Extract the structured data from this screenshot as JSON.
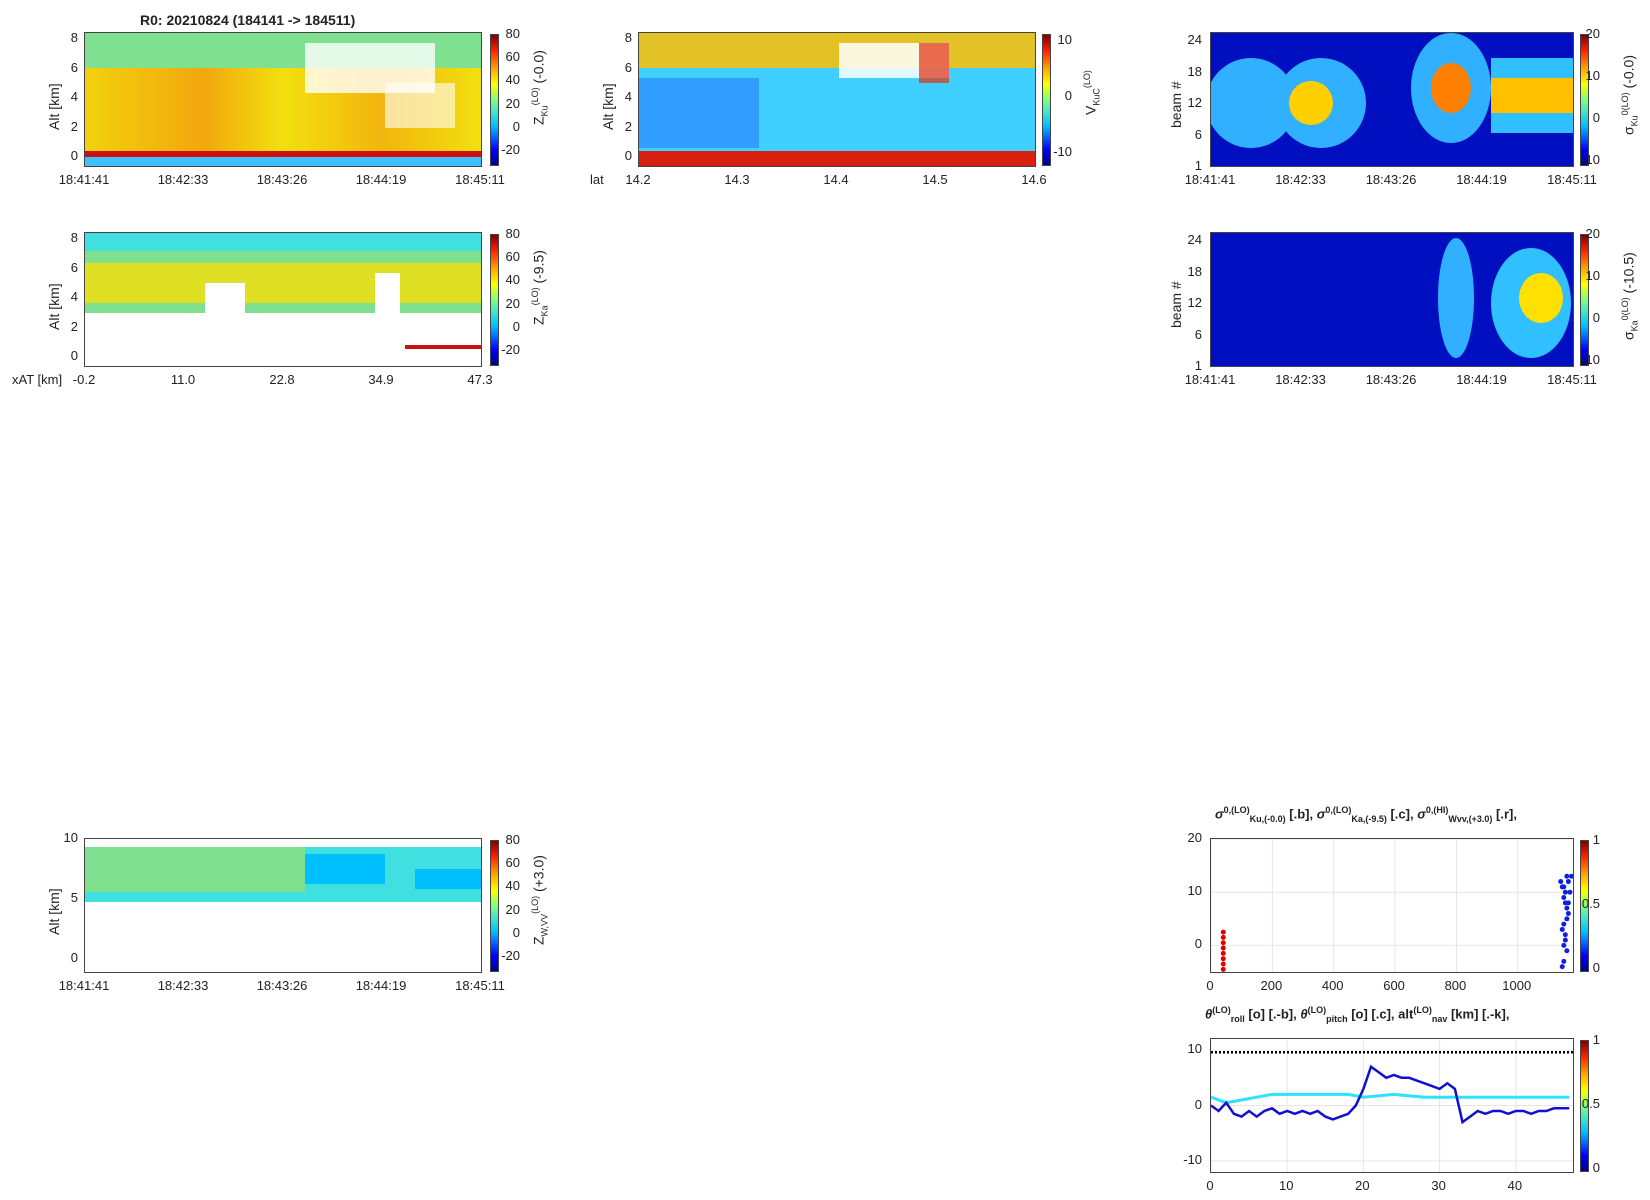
{
  "title": "R0:  20210824 (184141 -> 184511)",
  "time_ticks": [
    "18:41:41",
    "18:42:33",
    "18:43:26",
    "18:44:19",
    "18:45:11"
  ],
  "xat_ticks": [
    "-0.2",
    "11.0",
    "22.8",
    "34.9",
    "47.3"
  ],
  "xat_label": "x",
  "xat_sub": "AT",
  "xat_unit": "[km]",
  "lat_ticks": [
    "14.2",
    "14.3",
    "14.4",
    "14.5",
    "14.6"
  ],
  "lat_label": "lat",
  "alt_label": "Alt [km]",
  "beam_label": "beam #",
  "alt8_ticks": [
    "8",
    "6",
    "4",
    "2",
    "0"
  ],
  "alt10_ticks": [
    "10",
    "5",
    "0"
  ],
  "beam_ticks": [
    "24",
    "18",
    "12",
    "6",
    "1"
  ],
  "cbar_z_ticks": [
    "80",
    "60",
    "40",
    "20",
    "0",
    "-20"
  ],
  "cbar_v_ticks": [
    "10",
    "0",
    "-10"
  ],
  "cbar_s_ticks": [
    "20",
    "10",
    "0",
    "-10"
  ],
  "cbar_01_ticks": [
    "1",
    "0.5",
    "0"
  ],
  "labels": {
    "zku": "Z",
    "zku_sub": "Ku",
    "zku_sup": "(LO)",
    "zku_off": " (-0.0)",
    "zka": "Z",
    "zka_sub": "Ka",
    "zka_sup": "(LO)",
    "zka_off": " (-9.5)",
    "zw": "Z",
    "zw_sub": "W,VV",
    "zw_sup": "(LO)",
    "zw_off": " (+3.0)",
    "vku": "V",
    "vku_sub": "KuC",
    "vku_sup": "(LO)",
    "sku": "σ",
    "sku_sub": "Ku",
    "sku_sup": "0(LO)",
    "sku_off": " (-0.0)",
    "ska": "σ",
    "ska_sub": "Ka",
    "ska_sup": "0(LO)",
    "ska_off": " (-10.5)"
  },
  "sigma_title": {
    "a": "σ",
    "a_sup": "0,(LO)",
    "a_sub": "Ku,(-0.0)",
    "a_tail": " [.b], ",
    "b": "σ",
    "b_sup": "0,(LO)",
    "b_sub": "Ka,(-9.5)",
    "b_tail": " [.c], ",
    "c": "σ",
    "c_sup": "0,(HI)",
    "c_sub": "Wvv,(+3.0)",
    "c_tail": " [.r],"
  },
  "nav_title": {
    "a": "θ",
    "a_sup": "(LO)",
    "a_sub": "roll",
    "a_tail": " [o] [.-b], ",
    "b": "θ",
    "b_sup": "(LO)",
    "b_sub": "pitch",
    "b_tail": " [o] [.c], ",
    "c": "alt",
    "c_sup": "(LO)",
    "c_sub": "nav",
    "c_tail": " [km] [.-k],"
  },
  "chart_data": [
    {
      "type": "scatter",
      "name": "sigma0",
      "x_ticks": [
        "0",
        "200",
        "400",
        "600",
        "800",
        "1000"
      ],
      "y_ticks": [
        "20",
        "10",
        "0"
      ],
      "xlim": [
        0,
        1180
      ],
      "ylim": [
        -5,
        20
      ],
      "red_points": [
        [
          40,
          2.5
        ],
        [
          40,
          1.5
        ],
        [
          40,
          0.5
        ],
        [
          40,
          -0.5
        ],
        [
          40,
          -1.5
        ],
        [
          40,
          -2.5
        ],
        [
          40,
          -3.5
        ],
        [
          40,
          -4.5
        ]
      ],
      "blue_points": [
        [
          1140,
          12
        ],
        [
          1145,
          11
        ],
        [
          1150,
          9
        ],
        [
          1155,
          8
        ],
        [
          1160,
          7
        ],
        [
          1165,
          6
        ],
        [
          1150,
          4
        ],
        [
          1145,
          3
        ],
        [
          1155,
          1
        ],
        [
          1160,
          -1
        ],
        [
          1150,
          -3
        ],
        [
          1145,
          -4
        ],
        [
          1170,
          10
        ],
        [
          1165,
          12
        ],
        [
          1160,
          13
        ],
        [
          1175,
          13
        ],
        [
          1155,
          10
        ],
        [
          1150,
          11
        ],
        [
          1165,
          8
        ],
        [
          1160,
          5
        ],
        [
          1155,
          2
        ],
        [
          1150,
          0
        ]
      ]
    },
    {
      "type": "line",
      "name": "nav",
      "x_ticks": [
        "0",
        "10",
        "20",
        "30",
        "40"
      ],
      "y_ticks": [
        "10",
        "0",
        "-10"
      ],
      "xlim": [
        0,
        47.5
      ],
      "ylim": [
        -12,
        12
      ],
      "roll": [
        [
          0,
          0
        ],
        [
          1,
          -1
        ],
        [
          2,
          0.5
        ],
        [
          3,
          -1.5
        ],
        [
          4,
          -2
        ],
        [
          5,
          -1
        ],
        [
          6,
          -2
        ],
        [
          7,
          -1
        ],
        [
          8,
          -0.5
        ],
        [
          9,
          -1.5
        ],
        [
          10,
          -1
        ],
        [
          11,
          -1.5
        ],
        [
          12,
          -1
        ],
        [
          13,
          -1.5
        ],
        [
          14,
          -1
        ],
        [
          15,
          -2
        ],
        [
          16,
          -2.5
        ],
        [
          17,
          -2
        ],
        [
          18,
          -1.5
        ],
        [
          19,
          0
        ],
        [
          20,
          3
        ],
        [
          21,
          7
        ],
        [
          22,
          6
        ],
        [
          23,
          5
        ],
        [
          24,
          5.5
        ],
        [
          25,
          5
        ],
        [
          26,
          5
        ],
        [
          27,
          4.5
        ],
        [
          28,
          4
        ],
        [
          29,
          3.5
        ],
        [
          30,
          3
        ],
        [
          31,
          4
        ],
        [
          32,
          3
        ],
        [
          33,
          -3
        ],
        [
          34,
          -2
        ],
        [
          35,
          -1
        ],
        [
          36,
          -1.5
        ],
        [
          37,
          -1
        ],
        [
          38,
          -1
        ],
        [
          39,
          -1.5
        ],
        [
          40,
          -1
        ],
        [
          41,
          -1
        ],
        [
          42,
          -1.5
        ],
        [
          43,
          -1
        ],
        [
          44,
          -1
        ],
        [
          45,
          -0.5
        ],
        [
          46,
          -0.5
        ],
        [
          47,
          -0.5
        ]
      ],
      "pitch": [
        [
          0,
          1.5
        ],
        [
          2,
          0.5
        ],
        [
          4,
          1
        ],
        [
          6,
          1.5
        ],
        [
          8,
          2
        ],
        [
          10,
          2
        ],
        [
          14,
          2
        ],
        [
          18,
          2
        ],
        [
          20,
          1.5
        ],
        [
          24,
          2
        ],
        [
          28,
          1.5
        ],
        [
          32,
          1.5
        ],
        [
          36,
          1.5
        ],
        [
          40,
          1.5
        ],
        [
          44,
          1.5
        ],
        [
          47,
          1.5
        ]
      ],
      "alt": [
        [
          0,
          9.6
        ],
        [
          47.5,
          9.6
        ]
      ]
    }
  ]
}
